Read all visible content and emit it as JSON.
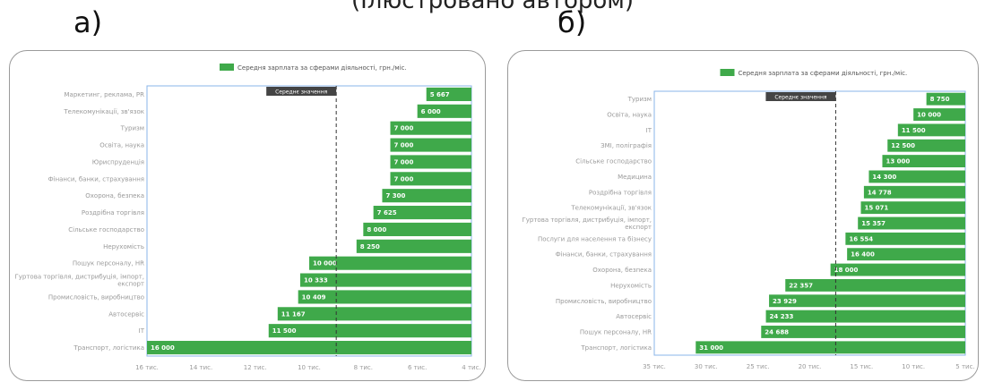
{
  "header": {
    "top_text": "(Ілюстровано автором)"
  },
  "colors": {
    "bar": "#3fa94a",
    "axis_box": "#8ab4e8",
    "avg_label_bg": "#444444"
  },
  "chart_data": [
    {
      "id": "a",
      "panel_label": "а)",
      "type": "bar",
      "orientation": "horizontal",
      "legend": "Середня зарплата за сферами діяльності, грн./міс.",
      "legend_position": "top",
      "average_label": "Середнє значення",
      "average_value": 9000,
      "x_reversed": true,
      "xlim": [
        16000,
        4000
      ],
      "ticks": [
        16000,
        14000,
        12000,
        10000,
        8000,
        6000,
        4000
      ],
      "tick_labels": [
        "16 тис.",
        "14 тис.",
        "12 тис.",
        "10 тис.",
        "8 тис.",
        "6 тис.",
        "4 тис."
      ],
      "categories": [
        "Маркетинг, реклама, PR",
        "Телекомунікації, зв'язок",
        "Туризм",
        "Освіта, наука",
        "Юриспруденція",
        "Фінанси, банки, страхування",
        "Охорона, безпека",
        "Роздрібна торгівля",
        "Сільське господарство",
        "Нерухомість",
        "Пошук персоналу, HR",
        "Гуртова торгівля, дистрибуція, імпорт, експорт",
        "Промисловість, виробництво",
        "Автосервіс",
        "IT",
        "Транспорт, логістика"
      ],
      "values": [
        5667,
        6000,
        7000,
        7000,
        7000,
        7000,
        7300,
        7625,
        8000,
        8250,
        10000,
        10333,
        10409,
        11167,
        11500,
        16000
      ],
      "value_labels": [
        "5 667",
        "6 000",
        "7 000",
        "7 000",
        "7 000",
        "7 000",
        "7 300",
        "7 625",
        "8 000",
        "8 250",
        "10 000",
        "10 333",
        "10 409",
        "11 167",
        "11 500",
        "16 000"
      ]
    },
    {
      "id": "b",
      "panel_label": "б)",
      "type": "bar",
      "orientation": "horizontal",
      "legend": "Середня зарплата за сферами діяльності, грн./міс.",
      "legend_position": "top",
      "average_label": "Середнє значення",
      "average_value": 17500,
      "x_reversed": true,
      "xlim": [
        35000,
        5000
      ],
      "ticks": [
        35000,
        30000,
        25000,
        20000,
        15000,
        10000,
        5000
      ],
      "tick_labels": [
        "35 тис.",
        "30 тис.",
        "25 тис.",
        "20 тис.",
        "15 тис.",
        "10 тис.",
        "5 тис."
      ],
      "categories": [
        "Туризм",
        "Освіта, наука",
        "IT",
        "ЗМІ, поліграфія",
        "Сільське господарство",
        "Медицина",
        "Роздрібна торгівля",
        "Телекомунікації, зв'язок",
        "Гуртова торгівля, дистрибуція, імпорт, експорт",
        "Послуги для населення та бізнесу",
        "Фінанси, банки, страхування",
        "Охорона, безпека",
        "Нерухомість",
        "Промисловість, виробництво",
        "Автосервіс",
        "Пошук персоналу, HR",
        "Транспорт, логістика"
      ],
      "values": [
        8750,
        10000,
        11500,
        12500,
        13000,
        14300,
        14778,
        15071,
        15357,
        16554,
        16400,
        18000,
        22357,
        23929,
        24233,
        24688,
        31000
      ],
      "value_labels": [
        "8 750",
        "10 000",
        "11 500",
        "12 500",
        "13 000",
        "14 300",
        "14 778",
        "15 071",
        "15 357",
        "16 554",
        "16 400",
        "18 000",
        "22 357",
        "23 929",
        "24 233",
        "24 688",
        "31 000"
      ]
    }
  ]
}
